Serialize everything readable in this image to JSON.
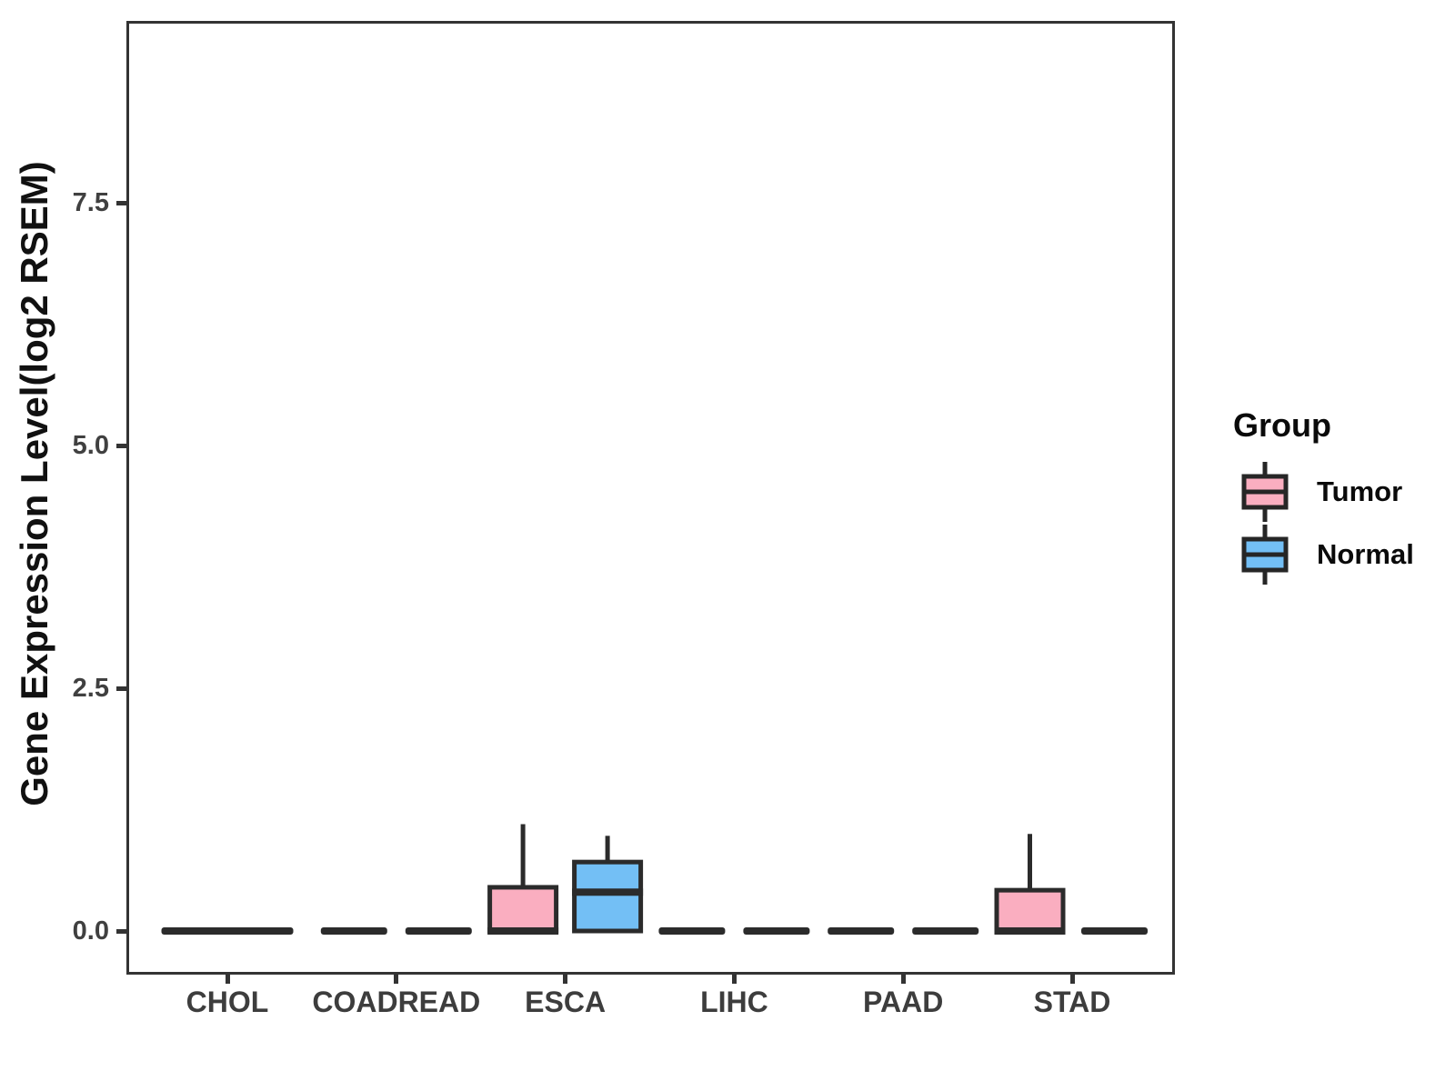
{
  "figure": {
    "background": "#ffffff",
    "panel_border_color": "#333333",
    "legend": {
      "title": "Group",
      "items": [
        {
          "label": "Tumor",
          "color": "#FAAEC0"
        },
        {
          "label": "Normal",
          "color": "#73BFF5"
        }
      ]
    }
  },
  "chart_data": {
    "type": "boxplot",
    "title": "",
    "xlabel": "",
    "ylabel": "Gene Expression Level(log2 RSEM)",
    "ylim": [
      -0.45,
      9.37
    ],
    "grid": "off",
    "legend_position": "right",
    "box_stroke_color": "#2B2B2B",
    "yticks": [
      {
        "label": "7.5",
        "value": 7.5
      },
      {
        "label": "5.0",
        "value": 5.0
      },
      {
        "label": "2.5",
        "value": 2.5
      },
      {
        "label": "0.0",
        "value": 0.0
      }
    ],
    "categories": [
      "CHOL",
      "COADREAD",
      "ESCA",
      "LIHC",
      "PAAD",
      "STAD"
    ],
    "series": [
      {
        "name": "Tumor",
        "fill": "#FAAEC0",
        "boxes": [
          {
            "category": "CHOL",
            "min": 0,
            "q1": 0,
            "median": 0,
            "q3": 0,
            "max": 0,
            "merged_full_width": true
          },
          {
            "category": "COADREAD",
            "min": 0,
            "q1": 0,
            "median": 0,
            "q3": 0,
            "max": 0
          },
          {
            "category": "ESCA",
            "min": 0,
            "q1": 0,
            "median": 0,
            "q3": 0.45,
            "max": 1.1
          },
          {
            "category": "LIHC",
            "min": 0,
            "q1": 0,
            "median": 0,
            "q3": 0,
            "max": 0
          },
          {
            "category": "PAAD",
            "min": 0,
            "q1": 0,
            "median": 0,
            "q3": 0,
            "max": 0
          },
          {
            "category": "STAD",
            "min": 0,
            "q1": 0,
            "median": 0,
            "q3": 0.42,
            "max": 1.0
          }
        ]
      },
      {
        "name": "Normal",
        "fill": "#73BFF5",
        "boxes": [
          {
            "category": "CHOL",
            "min": 0,
            "q1": 0,
            "median": 0,
            "q3": 0,
            "max": 0,
            "merged_full_width": true
          },
          {
            "category": "COADREAD",
            "min": 0,
            "q1": 0,
            "median": 0,
            "q3": 0,
            "max": 0
          },
          {
            "category": "ESCA",
            "min": 0,
            "q1": 0,
            "median": 0.4,
            "q3": 0.71,
            "max": 0.98
          },
          {
            "category": "LIHC",
            "min": 0,
            "q1": 0,
            "median": 0,
            "q3": 0,
            "max": 0
          },
          {
            "category": "PAAD",
            "min": 0,
            "q1": 0,
            "median": 0,
            "q3": 0,
            "max": 0
          },
          {
            "category": "STAD",
            "min": 0,
            "q1": 0,
            "median": 0,
            "q3": 0,
            "max": 0
          }
        ]
      }
    ],
    "notes": "All boxes collapse to a flat line at 0 except ESCA Tumor, ESCA Normal and STAD Tumor."
  }
}
